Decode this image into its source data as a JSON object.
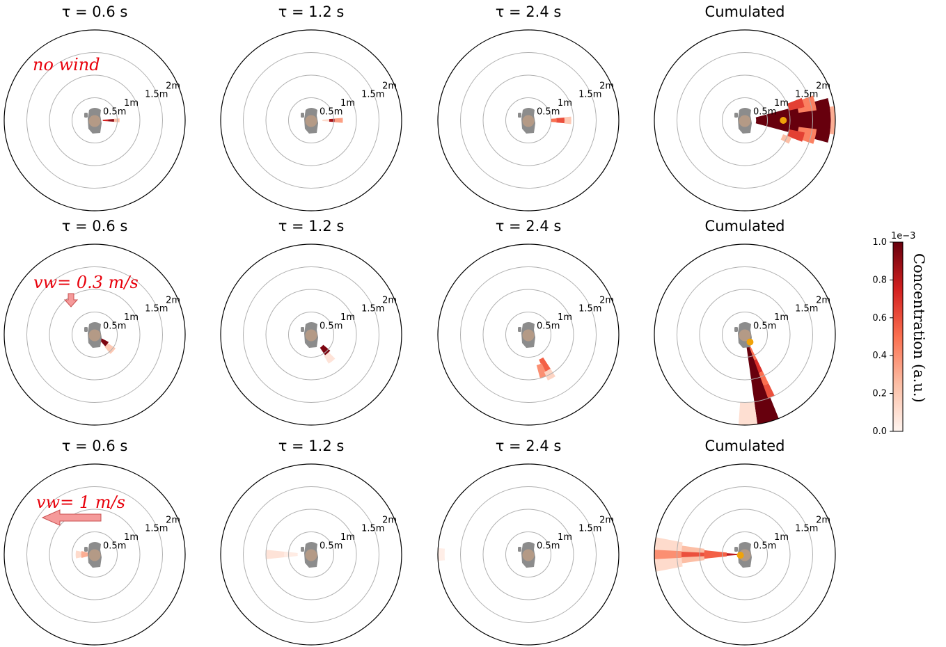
{
  "chart_data": {
    "type": "polar_heatmap",
    "grid": true,
    "radial_max": 2.0,
    "ring_labels": [
      "0.5m",
      "1m",
      "1.5m",
      "2m"
    ],
    "ring_values": [
      0.5,
      1.0,
      1.5,
      2.0
    ],
    "colormap": [
      "#fff5f0",
      "#fcbea5",
      "#fb7050",
      "#d32020",
      "#67000d"
    ],
    "source_marker_color": "#f0a30a",
    "colorbar": {
      "label": "Concentration (a.u.)",
      "multiplier": "1e−3",
      "range": [
        0.0,
        1.0
      ],
      "ticks": [
        "0.0",
        "0.2",
        "0.4",
        "0.6",
        "0.8",
        "1.0"
      ]
    },
    "rows": [
      {
        "annotation": "no wind",
        "wind_arrow": "none",
        "panels": [
          {
            "title": "τ = 0.6 s",
            "sectors": [
              {
                "a": 0,
                "w": 8,
                "r0": 0.18,
                "r1": 0.3,
                "c": 0.75
              },
              {
                "a": 0,
                "w": 8,
                "r0": 0.3,
                "r1": 0.43,
                "c": 0.9
              },
              {
                "a": 0,
                "w": 9,
                "r0": 0.43,
                "r1": 0.55,
                "c": 0.25
              }
            ]
          },
          {
            "title": "τ = 1.2 s",
            "sectors": [
              {
                "a": 0,
                "w": 7,
                "r0": 0.25,
                "r1": 0.4,
                "c": 0.12
              },
              {
                "a": 0,
                "w": 8,
                "r0": 0.4,
                "r1": 0.52,
                "c": 0.85
              },
              {
                "a": 0,
                "w": 9,
                "r0": 0.52,
                "r1": 0.7,
                "c": 0.35
              }
            ]
          },
          {
            "title": "τ = 2.4 s",
            "sectors": [
              {
                "a": 0,
                "w": 8,
                "r0": 0.5,
                "r1": 0.62,
                "c": 0.5
              },
              {
                "a": 0,
                "w": 9,
                "r0": 0.62,
                "r1": 0.8,
                "c": 0.6
              },
              {
                "a": 0,
                "w": 10,
                "r0": 0.8,
                "r1": 0.95,
                "c": 0.2
              }
            ]
          },
          {
            "title": "Cumulated",
            "source": {
              "angle": 0,
              "r": 0.85
            },
            "sectors": [
              {
                "a": 0,
                "w": 30,
                "r0": 0.25,
                "r1": 1.9,
                "c": 1.0
              },
              {
                "a": 14,
                "w": 12,
                "r0": 1.2,
                "r1": 1.6,
                "c": 0.45
              },
              {
                "a": -13,
                "w": 12,
                "r0": 1.2,
                "r1": 1.6,
                "c": 0.45
              },
              {
                "a": 17,
                "w": 9,
                "r0": 1.0,
                "r1": 1.35,
                "c": 0.65
              },
              {
                "a": -16,
                "w": 9,
                "r0": 1.0,
                "r1": 1.35,
                "c": 0.65
              },
              {
                "a": 0,
                "w": 18,
                "r0": 1.9,
                "r1": 2.3,
                "c": 0.3
              },
              {
                "a": -24,
                "w": 8,
                "r0": 0.9,
                "r1": 1.1,
                "c": 0.25
              }
            ]
          }
        ]
      },
      {
        "annotation": "vw= 0.3 m/s",
        "wind_arrow": "down",
        "panels": [
          {
            "title": "τ = 0.6 s",
            "sectors": [
              {
                "a": -38,
                "w": 20,
                "r0": 0.15,
                "r1": 0.35,
                "c": 0.95
              },
              {
                "a": -42,
                "w": 18,
                "r0": 0.35,
                "r1": 0.55,
                "c": 0.2
              }
            ]
          },
          {
            "title": "τ = 1.2 s",
            "sectors": [
              {
                "a": -48,
                "w": 16,
                "r0": 0.35,
                "r1": 0.55,
                "c": 0.95
              },
              {
                "a": -52,
                "w": 14,
                "r0": 0.55,
                "r1": 0.75,
                "c": 0.08
              }
            ]
          },
          {
            "title": "τ = 2.4 s",
            "sectors": [
              {
                "a": -62,
                "w": 10,
                "r0": 0.6,
                "r1": 0.9,
                "c": 0.55
              },
              {
                "a": -70,
                "w": 10,
                "r0": 0.7,
                "r1": 1.0,
                "c": 0.4
              },
              {
                "a": -62,
                "w": 10,
                "r0": 0.9,
                "r1": 1.1,
                "c": 0.15
              }
            ]
          },
          {
            "title": "Cumulated",
            "source": {
              "angle": -55,
              "r": 0.2
            },
            "sectors": [
              {
                "a": -75,
                "w": 14,
                "r0": 0.1,
                "r1": 2.05,
                "c": 1.0
              },
              {
                "a": -67,
                "w": 6,
                "r0": 0.3,
                "r1": 0.6,
                "c": 0.5
              },
              {
                "a": -67,
                "w": 6,
                "r0": 0.6,
                "r1": 0.9,
                "c": 0.7
              },
              {
                "a": -67,
                "w": 6,
                "r0": 0.9,
                "r1": 1.2,
                "c": 0.5
              },
              {
                "a": -67,
                "w": 6,
                "r0": 1.2,
                "r1": 1.5,
                "c": 0.6
              },
              {
                "a": -88,
                "w": 12,
                "r0": 1.5,
                "r1": 2.05,
                "c": 0.1
              }
            ]
          }
        ]
      },
      {
        "annotation": "vw= 1 m/s",
        "wind_arrow": "left",
        "panels": [
          {
            "title": "τ = 0.6 s",
            "sectors": [
              {
                "a": 180,
                "w": 30,
                "r0": 0.1,
                "r1": 0.3,
                "c": 0.3
              },
              {
                "a": 180,
                "w": 24,
                "r0": 0.3,
                "r1": 0.42,
                "c": 0.12
              }
            ]
          },
          {
            "title": "τ = 1.2 s",
            "sectors": [
              {
                "a": 180,
                "w": 12,
                "r0": 0.3,
                "r1": 1.0,
                "c": 0.08
              },
              {
                "a": 180,
                "w": 10,
                "r0": 0.3,
                "r1": 0.6,
                "c": 0.04
              }
            ]
          },
          {
            "title": "τ = 2.4 s",
            "sectors": [
              {
                "a": 180,
                "w": 8,
                "r0": 1.85,
                "r1": 2.0,
                "c": 0.03
              }
            ]
          },
          {
            "title": "Cumulated",
            "source": {
              "angle": 190,
              "r": 0.1
            },
            "sectors": [
              {
                "a": 180,
                "w": 22,
                "r0": 1.4,
                "r1": 2.0,
                "c": 0.12
              },
              {
                "a": 180,
                "w": 16,
                "r0": 0.9,
                "r1": 1.4,
                "c": 0.25
              },
              {
                "a": 180,
                "w": 12,
                "r0": 0.4,
                "r1": 0.9,
                "c": 0.55
              },
              {
                "a": 180,
                "w": 8,
                "r0": 0.1,
                "r1": 0.4,
                "c": 0.8
              },
              {
                "a": 180,
                "w": 6,
                "r0": 1.4,
                "r1": 2.0,
                "c": 0.4
              },
              {
                "a": 180,
                "w": 5,
                "r0": 0.9,
                "r1": 1.4,
                "c": 0.6
              }
            ]
          }
        ]
      }
    ]
  }
}
